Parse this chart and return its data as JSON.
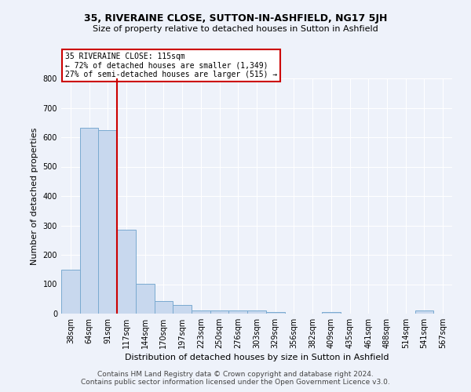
{
  "title": "35, RIVERAINE CLOSE, SUTTON-IN-ASHFIELD, NG17 5JH",
  "subtitle": "Size of property relative to detached houses in Sutton in Ashfield",
  "xlabel": "Distribution of detached houses by size in Sutton in Ashfield",
  "ylabel": "Number of detached properties",
  "bin_labels": [
    "38sqm",
    "64sqm",
    "91sqm",
    "117sqm",
    "144sqm",
    "170sqm",
    "197sqm",
    "223sqm",
    "250sqm",
    "276sqm",
    "303sqm",
    "329sqm",
    "356sqm",
    "382sqm",
    "409sqm",
    "435sqm",
    "461sqm",
    "488sqm",
    "514sqm",
    "541sqm",
    "567sqm"
  ],
  "bar_heights": [
    150,
    632,
    624,
    286,
    102,
    42,
    30,
    10,
    10,
    10,
    10,
    6,
    0,
    0,
    6,
    0,
    0,
    0,
    0,
    10,
    0
  ],
  "bar_color": "#c8d8ee",
  "bar_edge_color": "#7aaad0",
  "red_line_x": 2.5,
  "annotation_text": "35 RIVERAINE CLOSE: 115sqm\n← 72% of detached houses are smaller (1,349)\n27% of semi-detached houses are larger (515) →",
  "annotation_box_color": "#ffffff",
  "annotation_box_edge": "#cc0000",
  "red_line_color": "#cc0000",
  "ylim": [
    0,
    800
  ],
  "yticks": [
    0,
    100,
    200,
    300,
    400,
    500,
    600,
    700,
    800
  ],
  "footer": "Contains HM Land Registry data © Crown copyright and database right 2024.\nContains public sector information licensed under the Open Government Licence v3.0.",
  "bg_color": "#eef2fa",
  "grid_color": "#ffffff",
  "title_fontsize": 9,
  "subtitle_fontsize": 8,
  "xlabel_fontsize": 8,
  "ylabel_fontsize": 8,
  "tick_fontsize": 7,
  "footer_fontsize": 6.5
}
